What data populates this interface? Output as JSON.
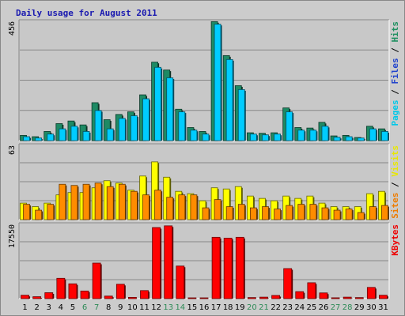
{
  "chart_data": {
    "type": "bar",
    "title": "Daily usage for August 2011",
    "categories": [
      "1",
      "2",
      "3",
      "4",
      "5",
      "6",
      "7",
      "8",
      "9",
      "10",
      "11",
      "12",
      "13",
      "14",
      "15",
      "16",
      "17",
      "18",
      "19",
      "20",
      "21",
      "22",
      "23",
      "24",
      "25",
      "26",
      "27",
      "28",
      "29",
      "30",
      "31"
    ],
    "weekend_days": [
      "6",
      "7",
      "13",
      "14",
      "20",
      "21",
      "27",
      "28"
    ],
    "panels": [
      {
        "id": "hits",
        "max_label": "456",
        "ylim": [
          0,
          456
        ],
        "legend": [
          {
            "text": "Pages",
            "color": "#00c8e8"
          },
          {
            "text": " / ",
            "color": "#000000"
          },
          {
            "text": "Files",
            "color": "#2244cc"
          },
          {
            "text": " / ",
            "color": "#000000"
          },
          {
            "text": "Hits",
            "color": "#1e9060"
          }
        ],
        "series": [
          {
            "name": "Hits",
            "color": "#1e8a64",
            "values": [
              20,
              15,
              35,
              65,
              75,
              60,
              145,
              80,
              100,
              110,
              175,
              300,
              270,
              120,
              50,
              35,
              455,
              325,
              210,
              30,
              28,
              30,
              125,
              50,
              48,
              70,
              18,
              20,
              12,
              55,
              45
            ]
          },
          {
            "name": "Pages",
            "color": "#00ccff",
            "values": [
              15,
              10,
              25,
              45,
              55,
              35,
              115,
              45,
              85,
              95,
              160,
              280,
              240,
              110,
              40,
              25,
              445,
              310,
              195,
              25,
              22,
              25,
              110,
              40,
              40,
              55,
              13,
              15,
              10,
              45,
              35
            ]
          }
        ]
      },
      {
        "id": "visits",
        "max_label": "63",
        "ylim": [
          0,
          63
        ],
        "legend": [
          {
            "text": "Sites",
            "color": "#ee7c00"
          },
          {
            "text": " / ",
            "color": "#000000"
          },
          {
            "text": "Visits",
            "color": "#e8e800"
          }
        ],
        "series": [
          {
            "name": "Visits",
            "color": "#ffff00",
            "values": [
              14,
              11,
              14,
              21,
              23,
              23,
              27,
              33,
              31,
              25,
              37,
              49,
              36,
              24,
              22,
              16,
              27,
              26,
              28,
              20,
              18,
              16,
              20,
              18,
              20,
              14,
              11,
              11,
              11,
              22,
              24
            ]
          },
          {
            "name": "Sites",
            "color": "#ff8c00",
            "values": [
              13,
              8,
              13,
              30,
              29,
              30,
              31,
              28,
              30,
              24,
              21,
              25,
              19,
              21,
              21,
              10,
              17,
              11,
              13,
              10,
              11,
              9,
              12,
              13,
              13,
              10,
              8,
              9,
              6,
              11,
              12
            ]
          }
        ]
      },
      {
        "id": "kbytes",
        "max_label": "17550",
        "ylim": [
          0,
          17550
        ],
        "legend": [
          {
            "text": "KBytes",
            "color": "#ee0000"
          }
        ],
        "series": [
          {
            "name": "KBytes",
            "color": "#ff0000",
            "values": [
              800,
              450,
              1400,
              4800,
              3500,
              1800,
              8400,
              600,
              3400,
              300,
              1900,
              16800,
              17200,
              7700,
              180,
              150,
              14500,
              14300,
              14500,
              250,
              350,
              750,
              7100,
              1650,
              3750,
              1350,
              200,
              350,
              250,
              2650,
              800
            ]
          }
        ]
      }
    ]
  }
}
